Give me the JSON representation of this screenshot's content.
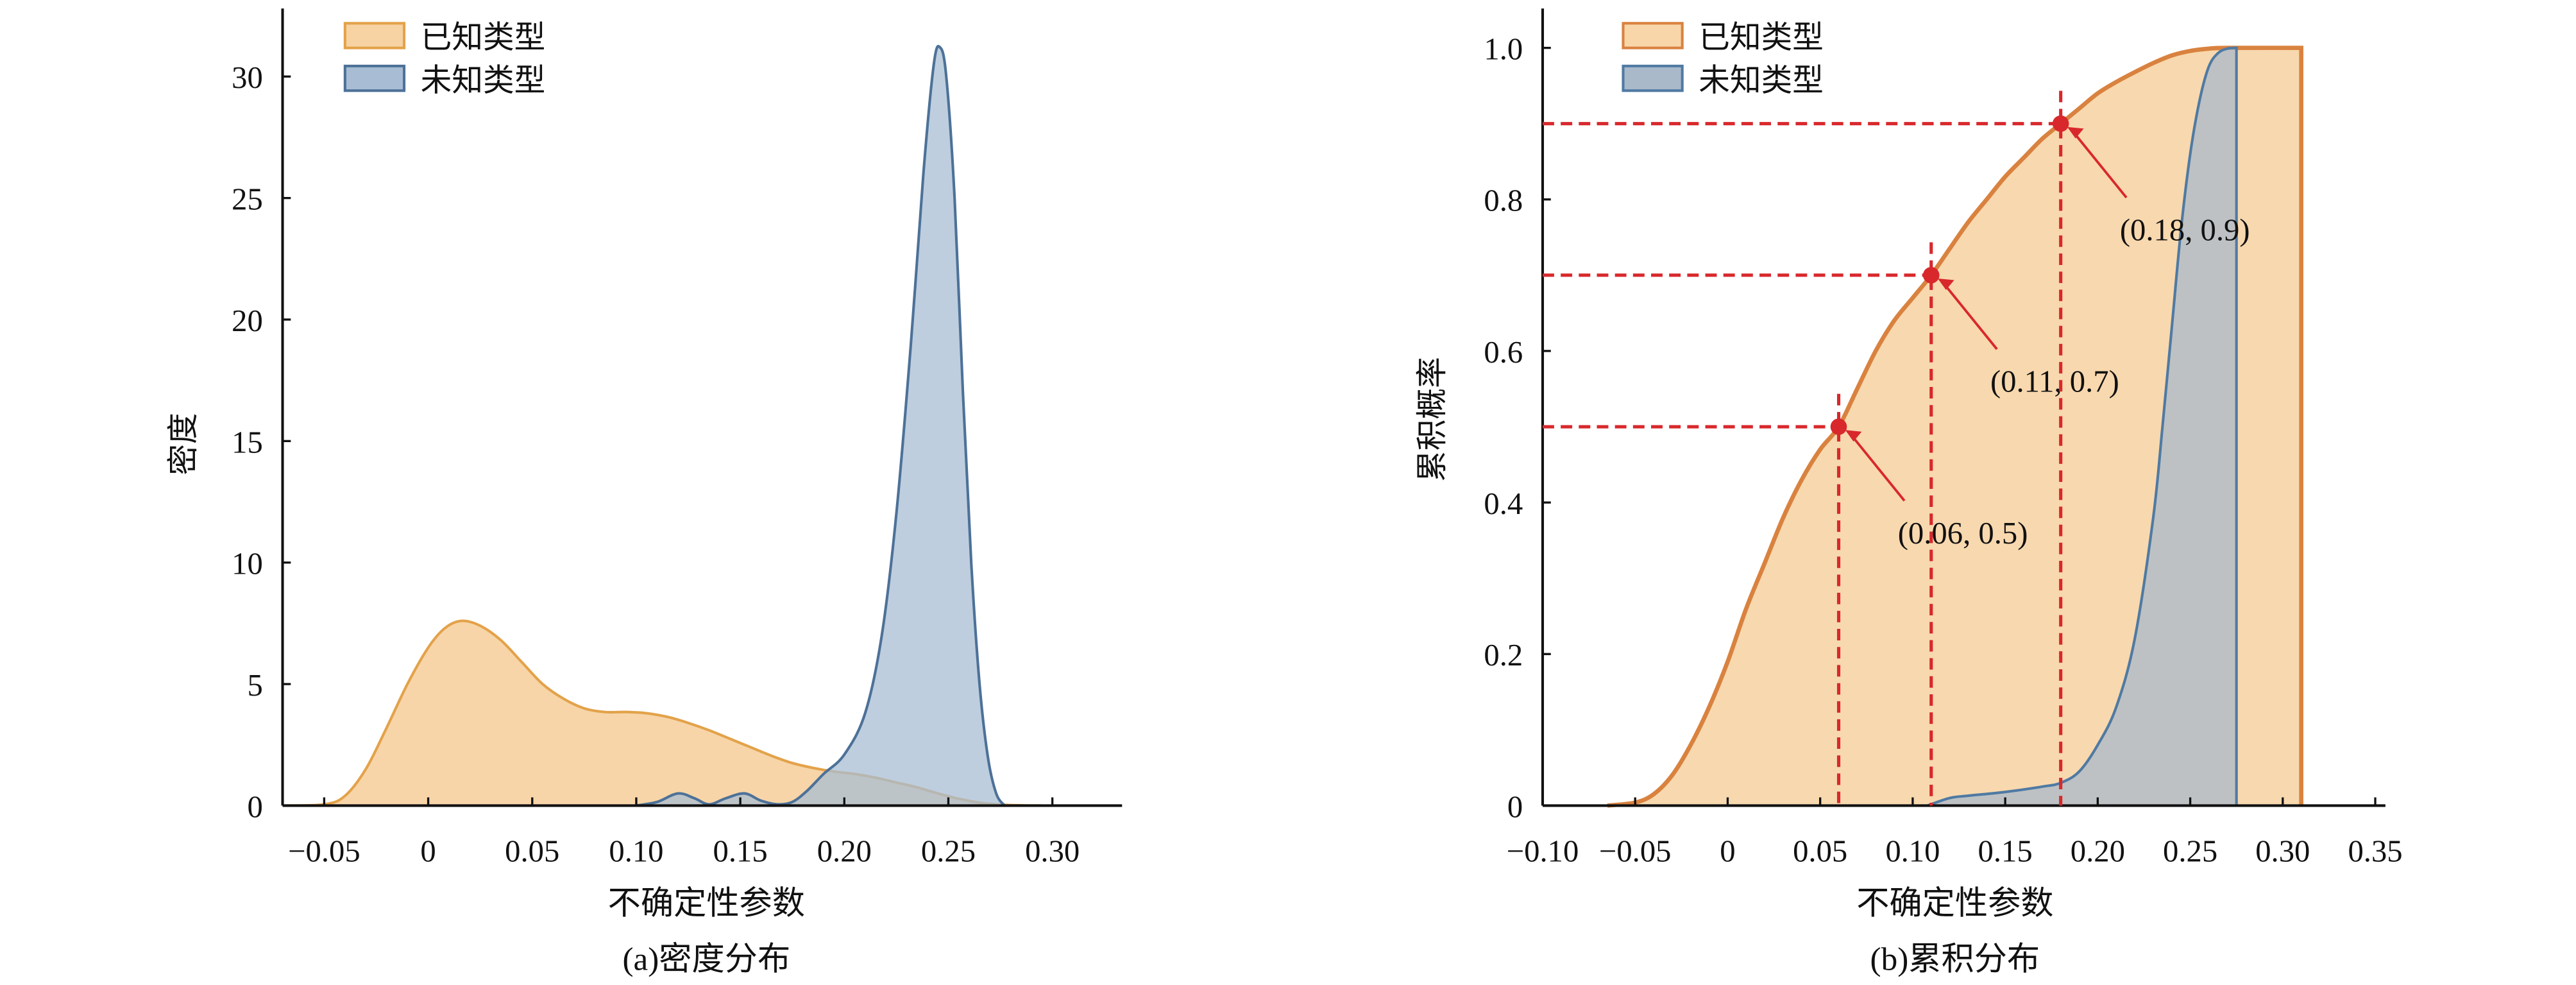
{
  "chart_data": [
    {
      "type": "area",
      "title": "",
      "caption": "(a)密度分布",
      "xlabel": "不确定性参数",
      "ylabel": "密度",
      "xlim": [
        -0.07,
        0.33
      ],
      "ylim": [
        0,
        32.5
      ],
      "xticks": [
        -0.05,
        0,
        0.05,
        0.1,
        0.15,
        0.2,
        0.25,
        0.3
      ],
      "xtick_labels": [
        "−0.05",
        "0",
        "0.05",
        "0.10",
        "0.15",
        "0.20",
        "0.25",
        "0.30"
      ],
      "yticks": [
        0,
        5,
        10,
        15,
        20,
        25,
        30
      ],
      "ytick_labels": [
        "0",
        "5",
        "10",
        "15",
        "20",
        "25",
        "30"
      ],
      "legend": {
        "placement": "top-left",
        "entries": [
          "已知类型",
          "未知类型"
        ]
      },
      "grid": false,
      "series": [
        {
          "name": "已知类型",
          "color": "#e3a24a",
          "fill": "#f7d3a3",
          "x": [
            -0.07,
            -0.05,
            -0.04,
            -0.03,
            -0.02,
            -0.01,
            0,
            0.008,
            0.016,
            0.025,
            0.035,
            0.045,
            0.055,
            0.065,
            0.075,
            0.085,
            0.095,
            0.105,
            0.115,
            0.125,
            0.135,
            0.145,
            0.155,
            0.165,
            0.175,
            0.185,
            0.195,
            0.205,
            0.215,
            0.225,
            0.235,
            0.245,
            0.255,
            0.265,
            0.275,
            0.285,
            0.295
          ],
          "y": [
            0,
            0.05,
            0.4,
            1.5,
            3.2,
            5.0,
            6.5,
            7.3,
            7.6,
            7.4,
            6.8,
            5.9,
            5.0,
            4.4,
            4.0,
            3.85,
            3.85,
            3.8,
            3.65,
            3.4,
            3.1,
            2.75,
            2.4,
            2.05,
            1.75,
            1.55,
            1.4,
            1.3,
            1.15,
            0.95,
            0.75,
            0.5,
            0.28,
            0.12,
            0.04,
            0.01,
            0
          ]
        },
        {
          "name": "未知类型",
          "color": "#4d7198",
          "fill": "#a8bdd3",
          "x": [
            0.1,
            0.11,
            0.12,
            0.128,
            0.135,
            0.143,
            0.152,
            0.16,
            0.168,
            0.175,
            0.182,
            0.19,
            0.2,
            0.21,
            0.218,
            0.225,
            0.232,
            0.238,
            0.243,
            0.246,
            0.249,
            0.253,
            0.257,
            0.261,
            0.265,
            0.269,
            0.273,
            0.277
          ],
          "y": [
            0,
            0.15,
            0.5,
            0.3,
            0.05,
            0.3,
            0.5,
            0.2,
            0.05,
            0.15,
            0.6,
            1.3,
            2.1,
            3.8,
            7,
            12,
            19,
            26,
            30.5,
            31.2,
            30,
            25,
            17,
            10,
            5,
            2,
            0.5,
            0
          ]
        }
      ]
    },
    {
      "type": "area",
      "title": "",
      "caption": "(b)累积分布",
      "xlabel": "不确定性参数",
      "ylabel": "累积概率",
      "xlim": [
        -0.1,
        0.35
      ],
      "ylim": [
        0,
        1.05
      ],
      "xticks": [
        -0.1,
        -0.05,
        0,
        0.05,
        0.1,
        0.15,
        0.2,
        0.25,
        0.3,
        0.35
      ],
      "xtick_labels": [
        "−0.10",
        "−0.05",
        "0",
        "0.05",
        "0.10",
        "0.15",
        "0.20",
        "0.25",
        "0.30",
        "0.35"
      ],
      "yticks": [
        0,
        0.2,
        0.4,
        0.6,
        0.8,
        1.0
      ],
      "ytick_labels": [
        "0",
        "0.2",
        "0.4",
        "0.6",
        "0.8",
        "1.0"
      ],
      "legend": {
        "placement": "top-left",
        "entries": [
          "已知类型",
          "未知类型"
        ]
      },
      "grid": false,
      "series": [
        {
          "name": "已知类型",
          "color": "#d9823f",
          "fill": "#f8d6aa",
          "x": [
            -0.065,
            -0.05,
            -0.04,
            -0.03,
            -0.02,
            -0.01,
            0,
            0.01,
            0.02,
            0.03,
            0.04,
            0.05,
            0.06,
            0.07,
            0.08,
            0.09,
            0.1,
            0.11,
            0.12,
            0.13,
            0.14,
            0.15,
            0.16,
            0.17,
            0.18,
            0.19,
            0.2,
            0.21,
            0.22,
            0.23,
            0.24,
            0.25,
            0.26,
            0.27,
            0.31
          ],
          "y": [
            0,
            0.004,
            0.015,
            0.04,
            0.08,
            0.13,
            0.19,
            0.26,
            0.32,
            0.38,
            0.43,
            0.47,
            0.5,
            0.55,
            0.6,
            0.64,
            0.67,
            0.7,
            0.735,
            0.77,
            0.8,
            0.83,
            0.855,
            0.88,
            0.9,
            0.92,
            0.94,
            0.955,
            0.968,
            0.98,
            0.99,
            0.996,
            0.999,
            1.0,
            1.0
          ]
        },
        {
          "name": "未知类型",
          "color": "#4f7aa3",
          "fill": "#a9b9c9",
          "x": [
            0.108,
            0.12,
            0.13,
            0.15,
            0.17,
            0.18,
            0.19,
            0.2,
            0.21,
            0.22,
            0.23,
            0.235,
            0.24,
            0.245,
            0.25,
            0.255,
            0.26,
            0.265,
            0.27,
            0.275
          ],
          "y": [
            0,
            0.01,
            0.013,
            0.018,
            0.025,
            0.03,
            0.045,
            0.08,
            0.13,
            0.22,
            0.38,
            0.5,
            0.63,
            0.76,
            0.86,
            0.93,
            0.975,
            0.993,
            0.999,
            1.0
          ]
        }
      ],
      "annotations": [
        {
          "x": 0.06,
          "y": 0.5,
          "label": "(0.06, 0.5)",
          "color": "#d8282c"
        },
        {
          "x": 0.11,
          "y": 0.7,
          "label": "(0.11, 0.7)",
          "color": "#d8282c"
        },
        {
          "x": 0.18,
          "y": 0.9,
          "label": "(0.18, 0.9)",
          "color": "#d8282c"
        }
      ]
    }
  ]
}
